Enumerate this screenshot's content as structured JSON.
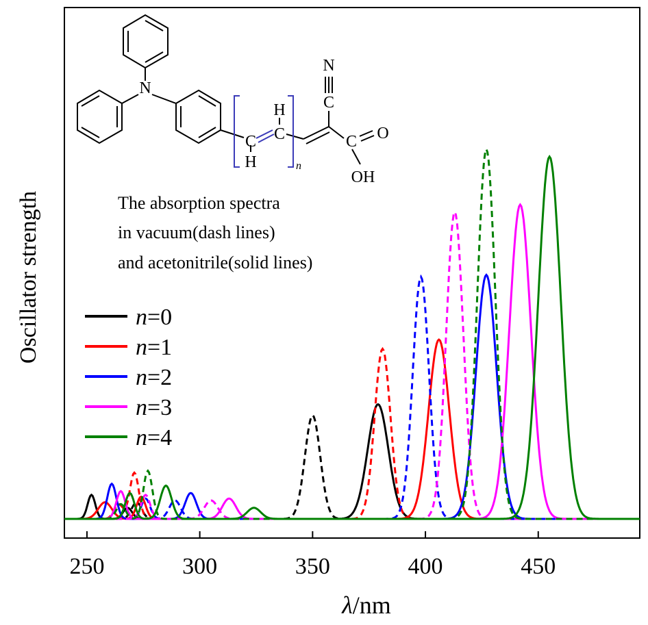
{
  "chart_data": {
    "type": "line",
    "title": "",
    "xlabel_symbol": "λ",
    "xlabel_unit": "/nm",
    "ylabel": "Oscillator strength",
    "xlim": [
      240,
      495
    ],
    "ylim": [
      0,
      1.0
    ],
    "x_ticks": [
      250,
      300,
      350,
      400,
      450
    ],
    "y_ticks_labeled": false,
    "grid": false,
    "legend_position": "left",
    "legend_prefix": "n",
    "annotation_lines": [
      "The absorption spectra",
      "in vacuum(dash lines)",
      "and acetonitrile(solid lines)"
    ],
    "series": [
      {
        "name": "=0",
        "color": "#000000",
        "vacuum_peaks": [
          [
            350,
            0.28,
            3.4
          ],
          [
            272,
            0.045,
            2.2
          ]
        ],
        "acetonitrile_peaks": [
          [
            379,
            0.31,
            4.6
          ],
          [
            252,
            0.065,
            1.7
          ],
          [
            268,
            0.03,
            2.0
          ]
        ]
      },
      {
        "name": "=1",
        "color": "#ff0000",
        "vacuum_peaks": [
          [
            381,
            0.46,
            3.5
          ],
          [
            271,
            0.125,
            2.0
          ],
          [
            264,
            0.04,
            2.0
          ]
        ],
        "acetonitrile_peaks": [
          [
            406,
            0.485,
            4.6
          ],
          [
            258,
            0.045,
            3.0
          ],
          [
            274,
            0.06,
            2.0
          ]
        ]
      },
      {
        "name": "=2",
        "color": "#0000ff",
        "vacuum_peaks": [
          [
            398,
            0.655,
            3.6
          ],
          [
            276,
            0.055,
            2.0
          ],
          [
            289,
            0.05,
            2.5
          ]
        ],
        "acetonitrile_peaks": [
          [
            427,
            0.66,
            4.6
          ],
          [
            261,
            0.095,
            2.0
          ],
          [
            296,
            0.07,
            2.5
          ]
        ]
      },
      {
        "name": "=3",
        "color": "#ff00ff",
        "vacuum_peaks": [
          [
            413,
            0.83,
            3.8
          ],
          [
            276,
            0.065,
            2.0
          ],
          [
            305,
            0.05,
            3.0
          ]
        ],
        "acetonitrile_peaks": [
          [
            442,
            0.85,
            4.8
          ],
          [
            265,
            0.075,
            2.0
          ],
          [
            313,
            0.055,
            3.0
          ]
        ]
      },
      {
        "name": "=4",
        "color": "#008000",
        "vacuum_peaks": [
          [
            427,
            1.0,
            4.0
          ],
          [
            277,
            0.13,
            2.0
          ],
          [
            265,
            0.04,
            2.0
          ]
        ],
        "acetonitrile_peaks": [
          [
            455,
            0.98,
            5.0
          ],
          [
            285,
            0.09,
            2.5
          ],
          [
            269,
            0.07,
            2.0
          ],
          [
            324,
            0.03,
            3.0
          ]
        ]
      }
    ]
  },
  "molecule": {
    "atom_N_top": "N",
    "atom_N_cyano": "N",
    "atom_C_cyano": "C",
    "atom_C_chain1": "C",
    "atom_H_chain1": "H",
    "atom_C_chain2": "C",
    "atom_H_chain2": "H",
    "atom_C_acid": "C",
    "atom_O": "O",
    "group_OH": "OH",
    "subscript_n": "n"
  }
}
